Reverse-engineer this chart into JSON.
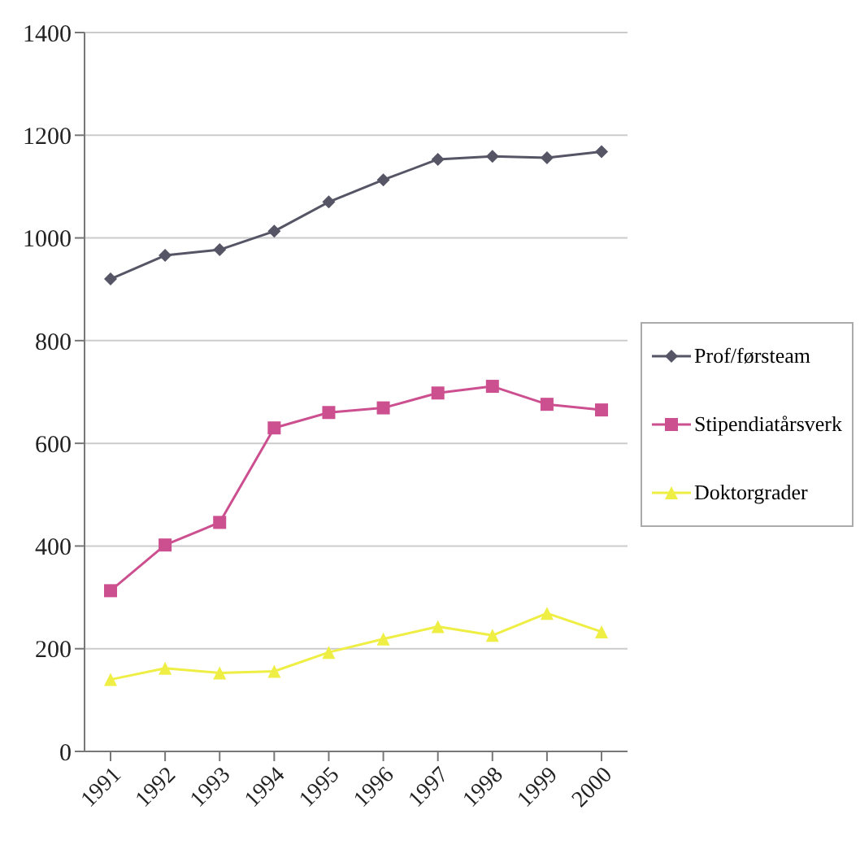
{
  "chart_data": {
    "type": "line",
    "categories": [
      "1991",
      "1992",
      "1993",
      "1994",
      "1995",
      "1996",
      "1997",
      "1998",
      "1999",
      "2000"
    ],
    "series": [
      {
        "name": "Prof/førsteam",
        "color": "#555566",
        "marker": "diamond",
        "values": [
          920,
          966,
          977,
          1013,
          1070,
          1113,
          1153,
          1159,
          1156,
          1168
        ]
      },
      {
        "name": "Stipendiatårsverk",
        "color": "#cc5090",
        "marker": "square",
        "values": [
          313,
          402,
          446,
          630,
          660,
          669,
          698,
          711,
          676,
          665
        ]
      },
      {
        "name": "Doktorgrader",
        "color": "#eeee44",
        "marker": "triangle",
        "values": [
          140,
          162,
          153,
          156,
          193,
          219,
          243,
          226,
          269,
          233
        ]
      }
    ],
    "ylim": [
      0,
      1400
    ],
    "yticks": [
      0,
      200,
      400,
      600,
      800,
      1000,
      1200,
      1400
    ],
    "grid": "y",
    "legend": "right"
  }
}
